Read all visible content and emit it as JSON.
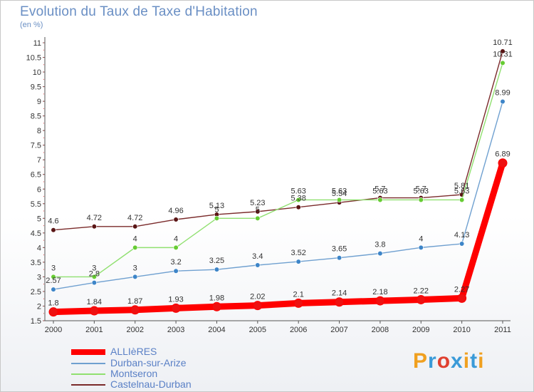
{
  "title": "Evolution du Taux de Taxe d'Habitation",
  "subtitle": "(en %)",
  "logo": [
    "P",
    "r",
    "o",
    "x",
    "i",
    "t",
    "i"
  ],
  "logo_colors": [
    "#f0a020",
    "#3a9ad8",
    "#e04030",
    "#3a9ad8",
    "#f0a020",
    "#3a9ad8",
    "#f0a020"
  ],
  "chart_data": {
    "type": "line",
    "x": [
      "2000",
      "2001",
      "2002",
      "2003",
      "2004",
      "2005",
      "2006",
      "2007",
      "2008",
      "2009",
      "2010",
      "2011"
    ],
    "ylim": [
      1.5,
      11
    ],
    "yticks": [
      "1.5",
      "2",
      "2.5",
      "3",
      "3.5",
      "4",
      "4.5",
      "5",
      "5.5",
      "6",
      "6.5",
      "7",
      "7.5",
      "8",
      "8.5",
      "9",
      "9.5",
      "10",
      "10.5",
      "11"
    ],
    "grid": false,
    "legend_position": "bottom-left",
    "series": [
      {
        "name": "ALLIèRES",
        "color": "#ff0000",
        "point_color": "#ee1111",
        "values": [
          1.8,
          1.84,
          1.87,
          1.93,
          1.98,
          2.02,
          2.1,
          2.14,
          2.18,
          2.22,
          2.27,
          6.89
        ],
        "labels": [
          "1.8",
          "1.84",
          "1.87",
          "1.93",
          "1.98",
          "2.02",
          "2.1",
          "2.14",
          "2.18",
          "2.22",
          "2.27",
          "6.89"
        ]
      },
      {
        "name": "Durban-sur-Arize",
        "color": "#6fa0d0",
        "point_color": "#3d85c8",
        "values": [
          2.57,
          2.8,
          3.0,
          3.2,
          3.25,
          3.4,
          3.52,
          3.65,
          3.8,
          4.0,
          4.13,
          8.99
        ],
        "labels": [
          "2.57",
          "2.8",
          "3",
          "3.2",
          "3.25",
          "3.4",
          "3.52",
          "3.65",
          "3.8",
          "4",
          "4.13",
          "8.99"
        ]
      },
      {
        "name": "Montseron",
        "color": "#90e070",
        "point_color": "#66cc33",
        "values": [
          3.0,
          3.0,
          4.0,
          4.0,
          5.0,
          5.0,
          5.63,
          5.63,
          5.63,
          5.63,
          5.63,
          10.31
        ],
        "labels": [
          "3",
          "3",
          "4",
          "4",
          "5",
          "5",
          "5.63",
          "5.63",
          "5.63",
          "5.63",
          "5.63",
          "10.31"
        ]
      },
      {
        "name": "Castelnau-Durban",
        "color": "#7a2a2a",
        "point_color": "#5a1515",
        "values": [
          4.6,
          4.72,
          4.72,
          4.96,
          5.13,
          5.23,
          5.38,
          5.54,
          5.7,
          5.7,
          5.81,
          10.71
        ],
        "labels": [
          "4.6",
          "4.72",
          "4.72",
          "4.96",
          "5.13",
          "5.23",
          "5.38",
          "5.54",
          "5.7",
          "5.7",
          "5.81",
          "10.71"
        ]
      }
    ]
  }
}
